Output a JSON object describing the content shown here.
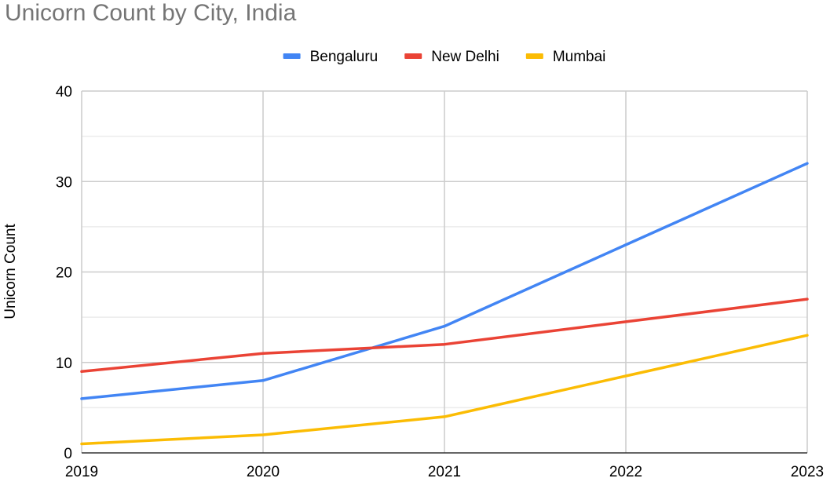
{
  "chart_data": {
    "type": "line",
    "title": "Unicorn Count by City, India",
    "xlabel": "",
    "ylabel": "Unicorn Count",
    "categories": [
      "2019",
      "2020",
      "2021",
      "2022",
      "2023"
    ],
    "series": [
      {
        "name": "Bengaluru",
        "color": "#4285f4",
        "values": [
          6,
          8,
          14,
          23,
          32
        ]
      },
      {
        "name": "New Delhi",
        "color": "#ea4335",
        "values": [
          9,
          11,
          12,
          14.5,
          17
        ]
      },
      {
        "name": "Mumbai",
        "color": "#fbbc04",
        "values": [
          1,
          2,
          4,
          8.5,
          13
        ]
      }
    ],
    "ylim": [
      0,
      40
    ],
    "yticks": [
      "0",
      "10",
      "20",
      "30",
      "40"
    ],
    "grid": true,
    "legend_position": "top"
  }
}
